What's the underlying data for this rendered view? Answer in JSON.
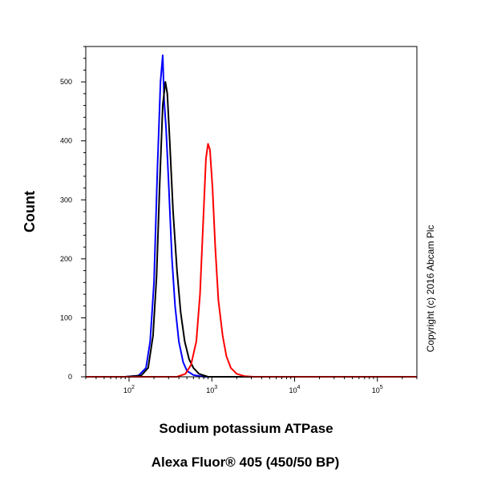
{
  "chart_data": {
    "type": "line",
    "xlabel": "Sodium potassium ATPase",
    "xlabel2": "Alexa Fluor® 405 (450/50 BP)",
    "ylabel": "Count",
    "x_scale": "log",
    "xlim": [
      30,
      300000
    ],
    "ylim": [
      0,
      560
    ],
    "y_ticks": [
      0,
      100,
      200,
      300,
      400,
      500
    ],
    "x_ticks": [
      {
        "value": 100,
        "base": "10",
        "exp": "2"
      },
      {
        "value": 1000,
        "base": "10",
        "exp": "3"
      },
      {
        "value": 10000,
        "base": "10",
        "exp": "4"
      },
      {
        "value": 100000,
        "base": "10",
        "exp": "5"
      }
    ],
    "grid": false,
    "series": [
      {
        "color": "#0000ff",
        "points": [
          [
            30,
            0
          ],
          [
            90,
            0
          ],
          [
            130,
            2
          ],
          [
            160,
            15
          ],
          [
            180,
            60
          ],
          [
            200,
            160
          ],
          [
            220,
            350
          ],
          [
            240,
            500
          ],
          [
            255,
            545
          ],
          [
            265,
            470
          ],
          [
            280,
            420
          ],
          [
            300,
            330
          ],
          [
            330,
            200
          ],
          [
            360,
            120
          ],
          [
            400,
            60
          ],
          [
            450,
            25
          ],
          [
            500,
            10
          ],
          [
            600,
            3
          ],
          [
            800,
            0
          ],
          [
            300000,
            0
          ]
        ]
      },
      {
        "color": "#000000",
        "points": [
          [
            30,
            0
          ],
          [
            90,
            0
          ],
          [
            140,
            2
          ],
          [
            170,
            15
          ],
          [
            195,
            70
          ],
          [
            215,
            170
          ],
          [
            235,
            330
          ],
          [
            255,
            460
          ],
          [
            275,
            500
          ],
          [
            290,
            480
          ],
          [
            310,
            400
          ],
          [
            340,
            280
          ],
          [
            380,
            180
          ],
          [
            420,
            110
          ],
          [
            470,
            60
          ],
          [
            530,
            30
          ],
          [
            600,
            15
          ],
          [
            700,
            5
          ],
          [
            900,
            0
          ],
          [
            300000,
            0
          ]
        ]
      },
      {
        "color": "#ff0000",
        "points": [
          [
            30,
            0
          ],
          [
            380,
            0
          ],
          [
            480,
            5
          ],
          [
            560,
            20
          ],
          [
            650,
            60
          ],
          [
            720,
            140
          ],
          [
            790,
            270
          ],
          [
            850,
            370
          ],
          [
            900,
            395
          ],
          [
            950,
            385
          ],
          [
            1020,
            320
          ],
          [
            1100,
            220
          ],
          [
            1200,
            130
          ],
          [
            1350,
            70
          ],
          [
            1500,
            35
          ],
          [
            1700,
            15
          ],
          [
            2000,
            5
          ],
          [
            2500,
            1
          ],
          [
            3200,
            0
          ],
          [
            300000,
            0
          ]
        ]
      }
    ]
  },
  "watermark": "Copyright (c) 2016 Abcam Plc"
}
